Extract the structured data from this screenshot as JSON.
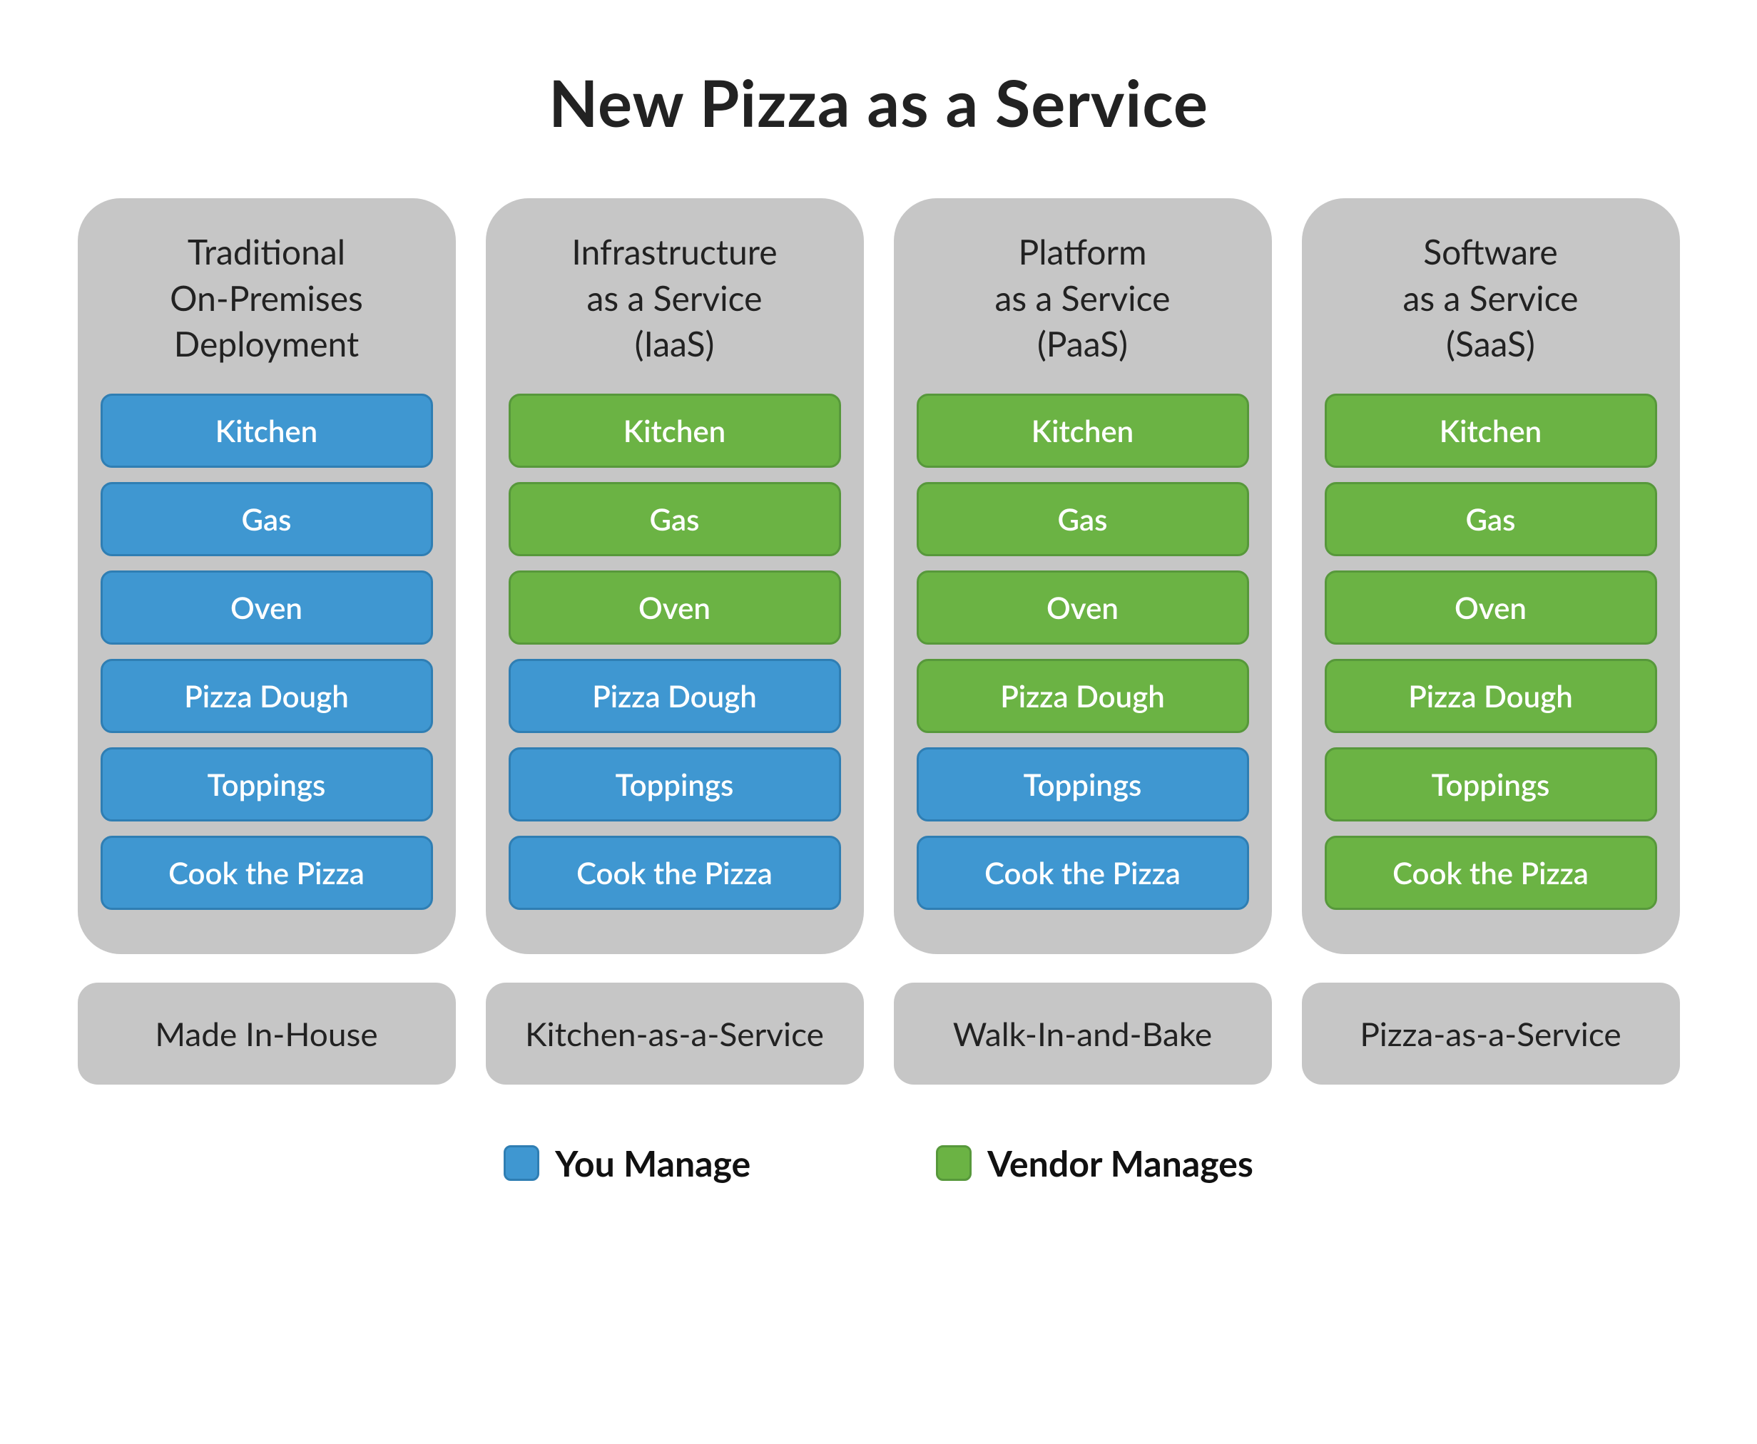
{
  "title": "New Pizza as a Service",
  "title_fontsize": 90,
  "colors": {
    "you_manage": "#3f97d1",
    "you_manage_border": "#2f7eb3",
    "vendor_manages": "#6bb344",
    "vendor_manages_border": "#57983b",
    "panel_bg": "#c6c6c6",
    "caption_bg": "#c6c6c6",
    "text_dark": "#222222"
  },
  "layer_labels": [
    "Kitchen",
    "Gas",
    "Oven",
    "Pizza Dough",
    "Toppings",
    "Cook the Pizza"
  ],
  "layer_fontsize": 42,
  "header_fontsize": 48,
  "caption_fontsize": 46,
  "legend_fontsize": 50,
  "legend_swatch_size": 50,
  "columns": [
    {
      "header": "Traditional\nOn-Premises\nDeployment",
      "ownership": [
        "you",
        "you",
        "you",
        "you",
        "you",
        "you"
      ],
      "caption": "Made In-House"
    },
    {
      "header": "Infrastructure\nas a Service\n(IaaS)",
      "ownership": [
        "vendor",
        "vendor",
        "vendor",
        "you",
        "you",
        "you"
      ],
      "caption": "Kitchen-as-a-Service"
    },
    {
      "header": "Platform\nas a Service\n(PaaS)",
      "ownership": [
        "vendor",
        "vendor",
        "vendor",
        "vendor",
        "you",
        "you"
      ],
      "caption": "Walk-In-and-Bake"
    },
    {
      "header": "Software\nas a Service\n(SaaS)",
      "ownership": [
        "vendor",
        "vendor",
        "vendor",
        "vendor",
        "vendor",
        "vendor"
      ],
      "caption": "Pizza-as-a-Service"
    }
  ],
  "legend": [
    {
      "label": "You Manage",
      "color_key": "you_manage"
    },
    {
      "label": "Vendor Manages",
      "color_key": "vendor_manages"
    }
  ]
}
